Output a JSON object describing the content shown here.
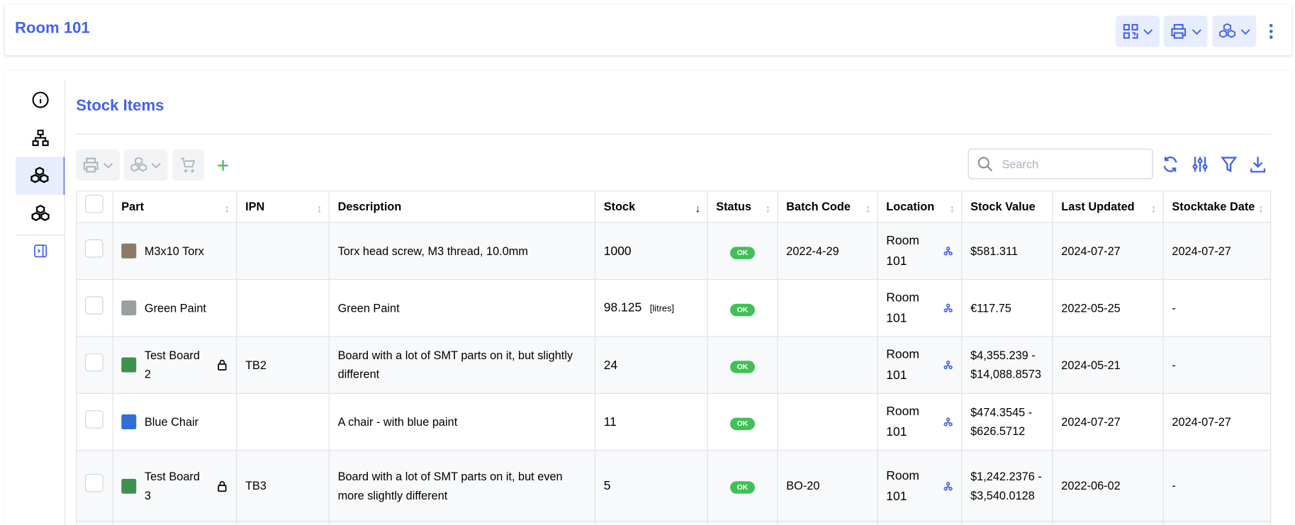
{
  "header": {
    "title": "Room 101",
    "actions": [
      {
        "icon": "qrcode-icon"
      },
      {
        "icon": "printer-icon"
      },
      {
        "icon": "stock-icon"
      },
      {
        "icon": "dots-vertical-icon"
      }
    ]
  },
  "sidebar": {
    "items": [
      {
        "icon": "info-icon"
      },
      {
        "icon": "sitemap-icon"
      },
      {
        "icon": "stock-icon",
        "active": true
      },
      {
        "icon": "stock-icon"
      },
      {
        "icon": "collapse-panel-icon"
      }
    ]
  },
  "section": {
    "title": "Stock Items"
  },
  "toolbar": {
    "search_placeholder": "Search",
    "search_value": ""
  },
  "colors": {
    "accent": "#4263eb",
    "ok": "#40c057",
    "add": "#40c057"
  },
  "table": {
    "columns": [
      "Part",
      "IPN",
      "Description",
      "Stock",
      "Status",
      "Batch Code",
      "Location",
      "Stock Value",
      "Last Updated",
      "Stocktake Date"
    ],
    "sort": {
      "column": "Stock",
      "direction": "descending"
    },
    "rows": [
      {
        "part": "M3x10 Torx",
        "locked": false,
        "ipn": "",
        "description": "Torx head screw, M3 thread, 10.0mm",
        "stock": "1000",
        "unit": "",
        "status": "OK",
        "batch": "2022-4-29",
        "location": "Room 101",
        "value": "$581.311",
        "updated": "2024-07-27",
        "stocktake": "2024-07-27",
        "thumb": "#8a7a66"
      },
      {
        "part": "Green Paint",
        "locked": false,
        "ipn": "",
        "description": "Green Paint",
        "stock": "98.125",
        "unit": "[litres]",
        "status": "OK",
        "batch": "",
        "location": "Room 101",
        "value": "€117.75",
        "updated": "2022-05-25",
        "stocktake": "-",
        "thumb": "#9aa0a0"
      },
      {
        "part": "Test Board 2",
        "locked": true,
        "ipn": "TB2",
        "description": "Board with a lot of SMT parts on it, but slightly different",
        "stock": "24",
        "unit": "",
        "status": "OK",
        "batch": "",
        "location": "Room 101",
        "value": "$4,355.239 - $14,088.8573",
        "updated": "2024-05-21",
        "stocktake": "-",
        "thumb": "#3f8f4f"
      },
      {
        "part": "Blue Chair",
        "locked": false,
        "ipn": "",
        "description": "A chair - with blue paint",
        "stock": "11",
        "unit": "",
        "status": "OK",
        "batch": "",
        "location": "Room 101",
        "value": "$474.3545 - $626.5712",
        "updated": "2024-07-27",
        "stocktake": "2024-07-27",
        "thumb": "#2c6fd6"
      },
      {
        "part": "Test Board 3",
        "locked": true,
        "ipn": "TB3",
        "description": "Board with a lot of SMT parts on it, but even more slightly different",
        "stock": "5",
        "unit": "",
        "status": "OK",
        "batch": "BO-20",
        "location": "Room 101",
        "value": "$1,242.2376 - $3,540.0128",
        "updated": "2022-06-02",
        "stocktake": "-",
        "thumb": "#3f8f4f"
      }
    ]
  }
}
